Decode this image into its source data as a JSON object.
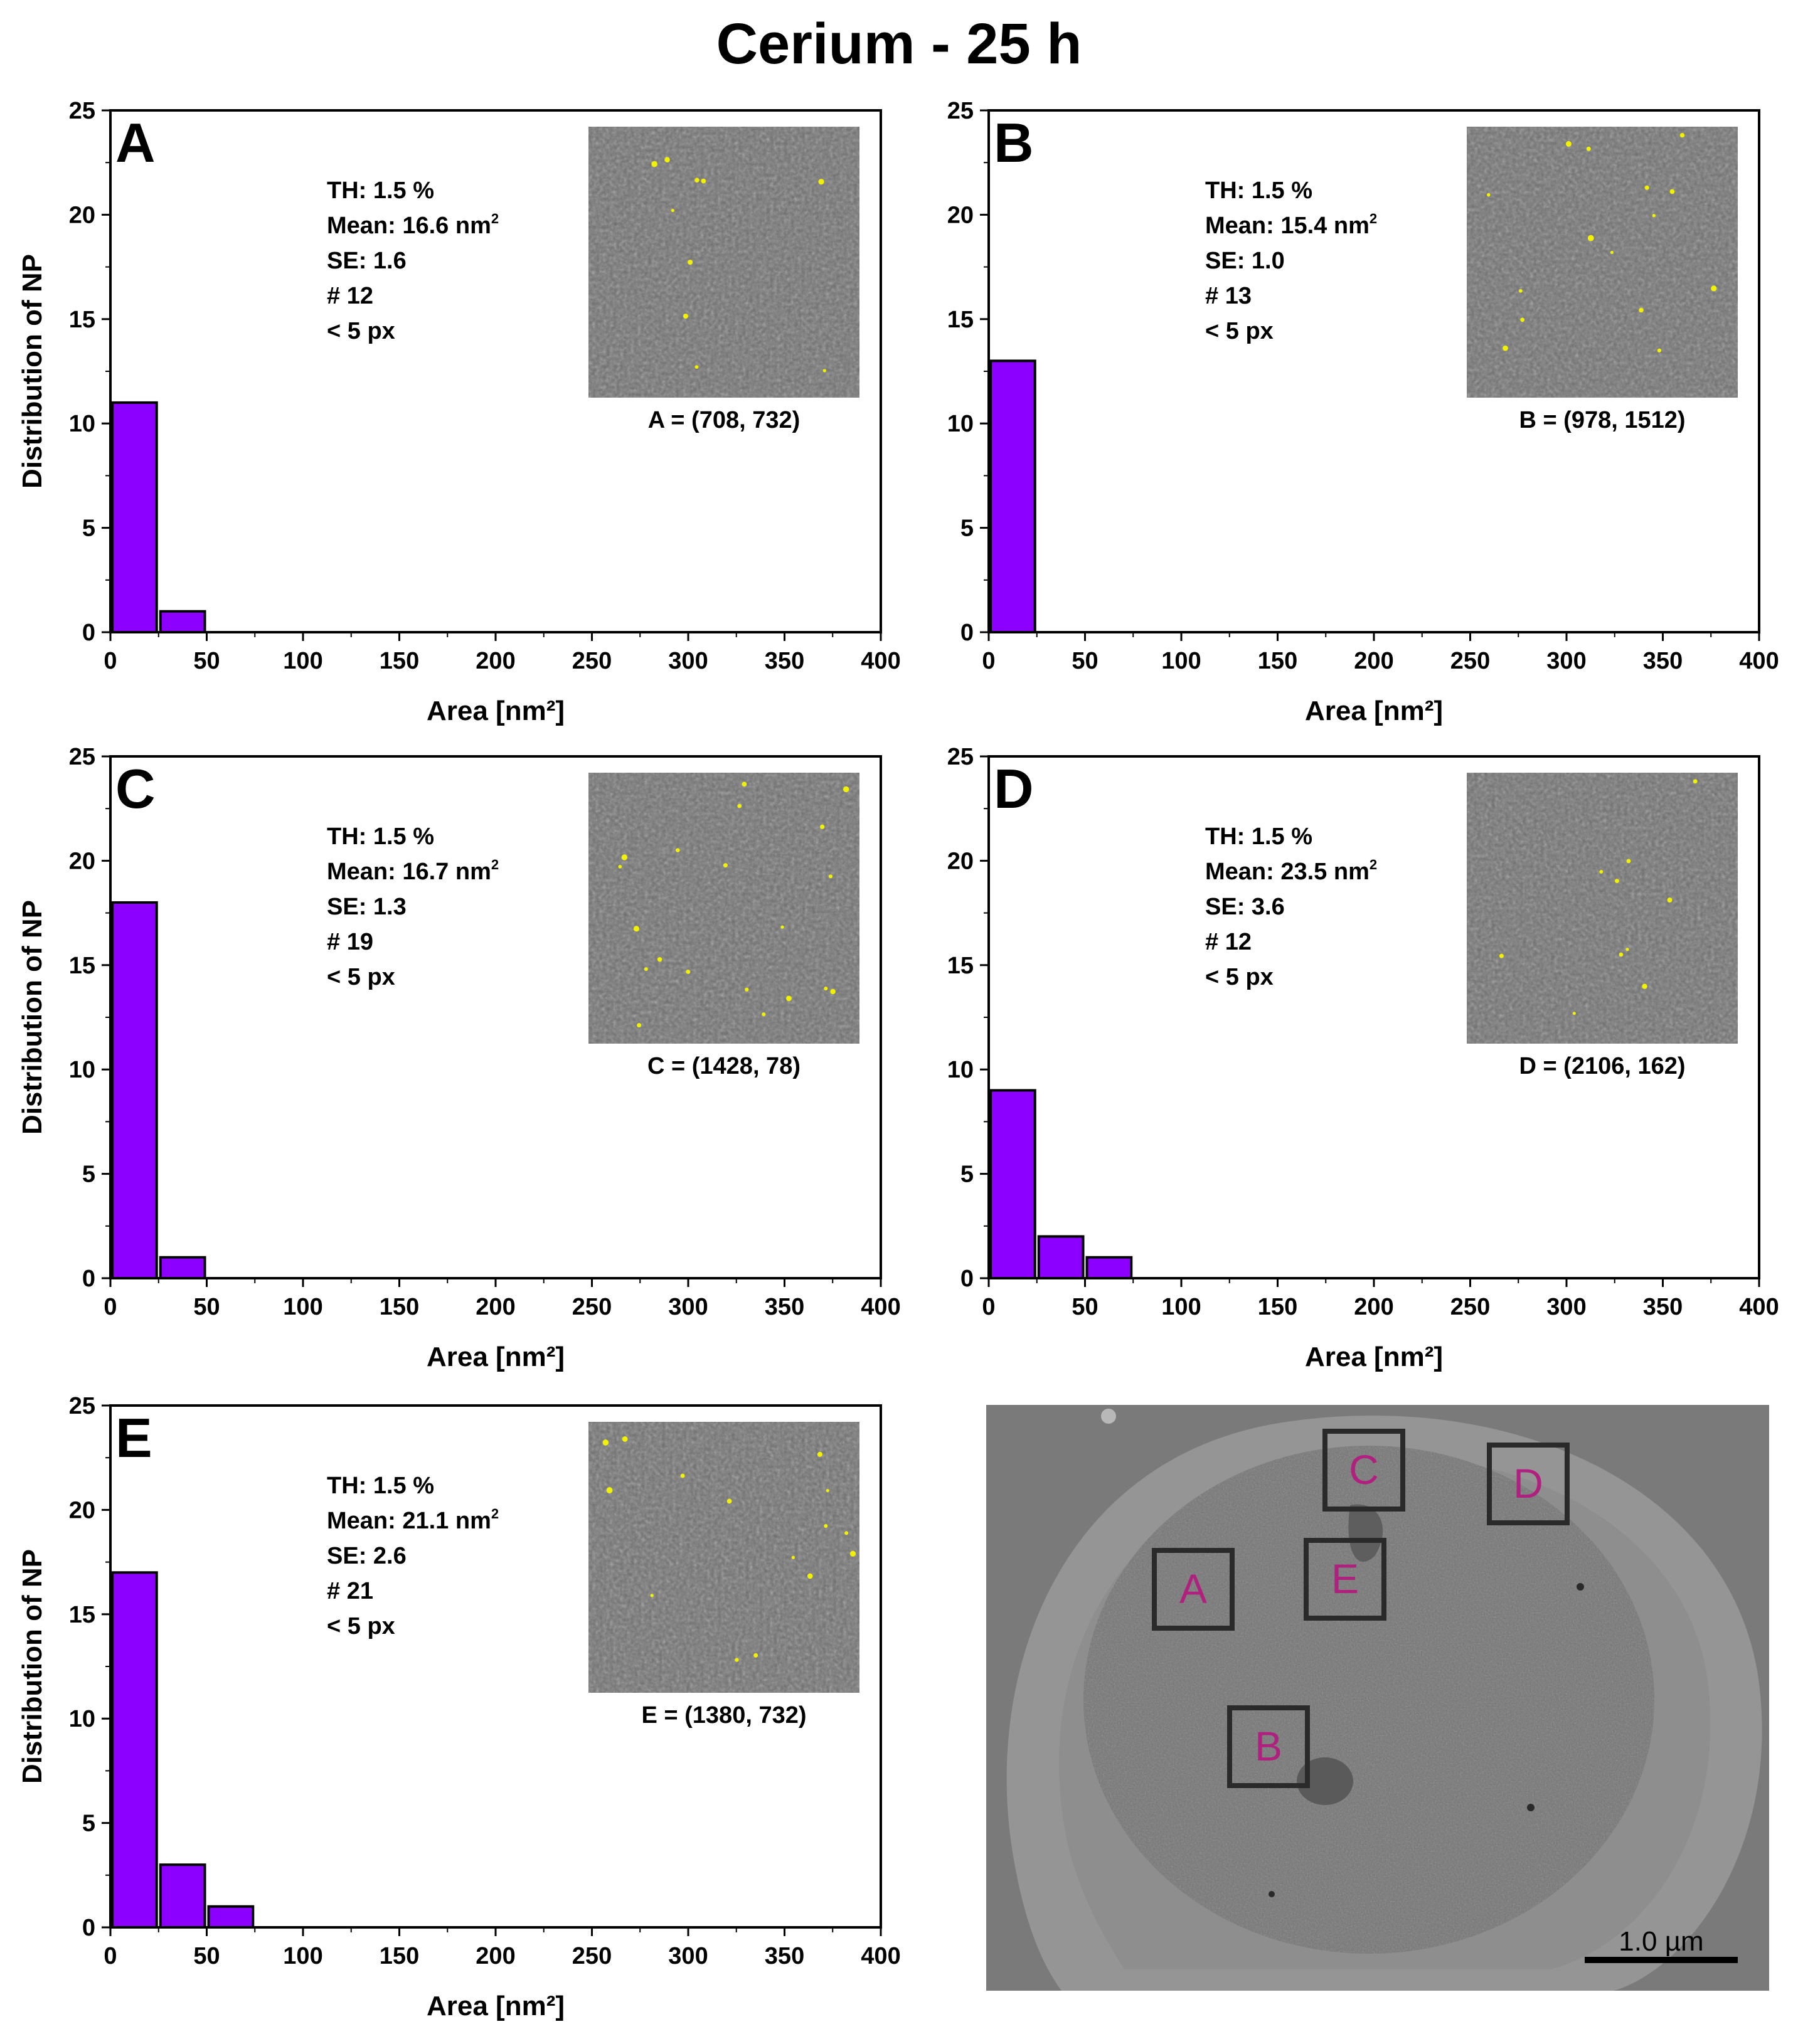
{
  "figure": {
    "title": "Cerium - 25 h"
  },
  "colors": {
    "bar": "#8B00FF",
    "bar_stroke": "#000000",
    "region_label": "#B0207F",
    "particle": "#F2F200"
  },
  "chart_data": [
    {
      "type": "bar",
      "panel": "A",
      "bin_centers": [
        12.5,
        37.5,
        62.5
      ],
      "bin_width": 25,
      "values": [
        11,
        1,
        0
      ],
      "xlabel": "Area [nm²]",
      "ylabel": "Distribution of NP",
      "xlim": [
        0,
        400
      ],
      "ylim": [
        0,
        25
      ],
      "xticks": [
        0,
        50,
        100,
        150,
        200,
        250,
        300,
        350,
        400
      ],
      "yticks": [
        0,
        5,
        10,
        15,
        20,
        25
      ],
      "stats": {
        "th": "TH: 1.5 %",
        "mean": "Mean: 16.6 nm",
        "mean_sup": "2",
        "se": "SE: 1.6",
        "count": "# 12",
        "px": "< 5 px"
      },
      "inset_caption": "A = (708, 732)"
    },
    {
      "type": "bar",
      "panel": "B",
      "bin_centers": [
        12.5,
        37.5,
        62.5
      ],
      "bin_width": 25,
      "values": [
        13,
        0,
        0
      ],
      "xlabel": "Area [nm²]",
      "ylabel": "",
      "xlim": [
        0,
        400
      ],
      "ylim": [
        0,
        25
      ],
      "xticks": [
        0,
        50,
        100,
        150,
        200,
        250,
        300,
        350,
        400
      ],
      "yticks": [
        0,
        5,
        10,
        15,
        20,
        25
      ],
      "stats": {
        "th": "TH: 1.5 %",
        "mean": "Mean: 15.4 nm",
        "mean_sup": "2",
        "se": "SE: 1.0",
        "count": "# 13",
        "px": "< 5 px"
      },
      "inset_caption": "B = (978, 1512)"
    },
    {
      "type": "bar",
      "panel": "C",
      "bin_centers": [
        12.5,
        37.5,
        62.5
      ],
      "bin_width": 25,
      "values": [
        18,
        1,
        0
      ],
      "xlabel": "Area [nm²]",
      "ylabel": "Distribution of NP",
      "xlim": [
        0,
        400
      ],
      "ylim": [
        0,
        25
      ],
      "xticks": [
        0,
        50,
        100,
        150,
        200,
        250,
        300,
        350,
        400
      ],
      "yticks": [
        0,
        5,
        10,
        15,
        20,
        25
      ],
      "stats": {
        "th": "TH: 1.5 %",
        "mean": "Mean: 16.7 nm",
        "mean_sup": "2",
        "se": "SE: 1.3",
        "count": "# 19",
        "px": "< 5 px"
      },
      "inset_caption": "C = (1428, 78)"
    },
    {
      "type": "bar",
      "panel": "D",
      "bin_centers": [
        12.5,
        37.5,
        62.5
      ],
      "bin_width": 25,
      "values": [
        9,
        2,
        1
      ],
      "xlabel": "Area [nm²]",
      "ylabel": "",
      "xlim": [
        0,
        400
      ],
      "ylim": [
        0,
        25
      ],
      "xticks": [
        0,
        50,
        100,
        150,
        200,
        250,
        300,
        350,
        400
      ],
      "yticks": [
        0,
        5,
        10,
        15,
        20,
        25
      ],
      "stats": {
        "th": "TH: 1.5 %",
        "mean": "Mean: 23.5 nm",
        "mean_sup": "2",
        "se": "SE: 3.6",
        "count": "# 12",
        "px": "< 5 px"
      },
      "inset_caption": "D = (2106, 162)"
    },
    {
      "type": "bar",
      "panel": "E",
      "bin_centers": [
        12.5,
        37.5,
        62.5
      ],
      "bin_width": 25,
      "values": [
        17,
        3,
        1
      ],
      "xlabel": "Area [nm²]",
      "ylabel": "Distribution of NP",
      "xlim": [
        0,
        400
      ],
      "ylim": [
        0,
        25
      ],
      "xticks": [
        0,
        50,
        100,
        150,
        200,
        250,
        300,
        350,
        400
      ],
      "yticks": [
        0,
        5,
        10,
        15,
        20,
        25
      ],
      "stats": {
        "th": "TH: 1.5 %",
        "mean": "Mean: 21.1 nm",
        "mean_sup": "2",
        "se": "SE: 2.6",
        "count": "# 21",
        "px": "< 5 px"
      },
      "inset_caption": "E = (1380, 732)"
    }
  ],
  "overview": {
    "region_labels": [
      "A",
      "B",
      "C",
      "D",
      "E"
    ],
    "scale_bar": "1.0 µm"
  }
}
